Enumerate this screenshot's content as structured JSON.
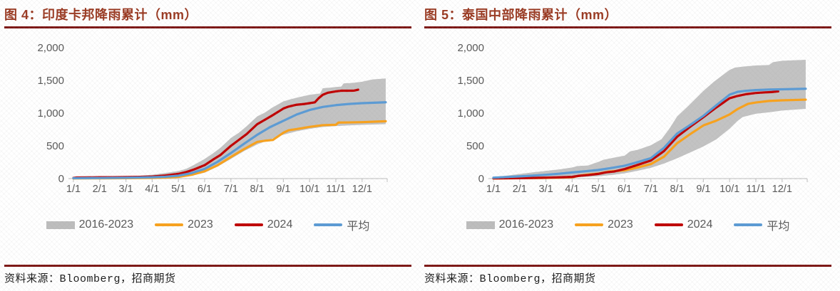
{
  "colors": {
    "title": "#9a3a22",
    "rule": "#7d1715",
    "axis_text": "#595959",
    "axis_line": "#c9c9c9",
    "band": "#c3c3c3",
    "orange_2023": "#f9a21c",
    "red_2024": "#c00000",
    "blue_avg": "#5b9bd5",
    "source_text": "#1a1a1a"
  },
  "panels": [
    {
      "title": "图 4：印度卡邦降雨累计（mm）",
      "source": "资料来源：Bloomberg，招商期货"
    },
    {
      "title": "图 5：泰国中部降雨累计（mm）",
      "source": "资料来源：Bloomberg，招商期货"
    }
  ],
  "chart_data": [
    {
      "type": "line",
      "title": "图 4：印度卡邦降雨累计（mm）",
      "xlabel": "",
      "ylabel": "",
      "x_axis": {
        "tick_labels": [
          "1/1",
          "2/1",
          "3/1",
          "4/1",
          "5/1",
          "6/1",
          "7/1",
          "8/1",
          "9/1",
          "10/1",
          "11/1",
          "12/1"
        ],
        "range_months": [
          1,
          12.9
        ]
      },
      "y_axis": {
        "ticks": [
          0,
          500,
          1000,
          1500,
          2000
        ],
        "tick_labels": [
          "0",
          "500",
          "1,000",
          "1,500",
          "2,000"
        ],
        "range": [
          0,
          2000
        ]
      },
      "grid": false,
      "legend_position": "bottom",
      "legend": [
        "2016-2023",
        "2023",
        "2024",
        "平均"
      ],
      "band": {
        "name": "2016-2023",
        "upper": [
          [
            1,
            12
          ],
          [
            1.5,
            16
          ],
          [
            2,
            20
          ],
          [
            2.5,
            25
          ],
          [
            3,
            32
          ],
          [
            3.5,
            42
          ],
          [
            4,
            58
          ],
          [
            4.5,
            85
          ],
          [
            5,
            115
          ],
          [
            5.3,
            150
          ],
          [
            5.6,
            210
          ],
          [
            6,
            300
          ],
          [
            6.3,
            380
          ],
          [
            6.6,
            470
          ],
          [
            7,
            620
          ],
          [
            7.3,
            700
          ],
          [
            7.6,
            800
          ],
          [
            8,
            950
          ],
          [
            8.3,
            1010
          ],
          [
            8.6,
            1090
          ],
          [
            9,
            1180
          ],
          [
            9.3,
            1215
          ],
          [
            9.6,
            1245
          ],
          [
            10,
            1280
          ],
          [
            10.4,
            1300
          ],
          [
            10.5,
            1380
          ],
          [
            10.8,
            1390
          ],
          [
            11,
            1400
          ],
          [
            11.2,
            1405
          ],
          [
            11.3,
            1455
          ],
          [
            11.6,
            1460
          ],
          [
            12,
            1480
          ],
          [
            12.4,
            1515
          ],
          [
            12.9,
            1530
          ]
        ],
        "lower": [
          [
            1,
            1
          ],
          [
            2,
            3
          ],
          [
            3,
            5
          ],
          [
            4,
            8
          ],
          [
            4.5,
            12
          ],
          [
            5,
            18
          ],
          [
            5.5,
            45
          ],
          [
            6,
            90
          ],
          [
            6.5,
            185
          ],
          [
            7,
            300
          ],
          [
            7.5,
            420
          ],
          [
            8,
            520
          ],
          [
            8.5,
            600
          ],
          [
            9,
            670
          ],
          [
            9.5,
            722
          ],
          [
            10,
            760
          ],
          [
            10.5,
            788
          ],
          [
            11,
            802
          ],
          [
            11.5,
            812
          ],
          [
            12,
            820
          ],
          [
            12.9,
            832
          ]
        ]
      },
      "series": [
        {
          "name": "2023",
          "color_key": "orange_2023",
          "points": [
            [
              1,
              2
            ],
            [
              2,
              4
            ],
            [
              3,
              7
            ],
            [
              4,
              11
            ],
            [
              4.5,
              16
            ],
            [
              5,
              26
            ],
            [
              5.5,
              58
            ],
            [
              6,
              112
            ],
            [
              6.5,
              205
            ],
            [
              7,
              330
            ],
            [
              7.5,
              450
            ],
            [
              8,
              560
            ],
            [
              8.3,
              578
            ],
            [
              8.6,
              590
            ],
            [
              9,
              700
            ],
            [
              9.2,
              738
            ],
            [
              9.5,
              756
            ],
            [
              10,
              790
            ],
            [
              10.5,
              816
            ],
            [
              11,
              822
            ],
            [
              11.1,
              856
            ],
            [
              11.5,
              858
            ],
            [
              12,
              862
            ],
            [
              12.9,
              876
            ]
          ]
        },
        {
          "name": "2024",
          "color_key": "red_2024",
          "points": [
            [
              1,
              10
            ],
            [
              1.1,
              16
            ],
            [
              1.5,
              18
            ],
            [
              2,
              20
            ],
            [
              2.5,
              21
            ],
            [
              3,
              23
            ],
            [
              3.5,
              26
            ],
            [
              4,
              32
            ],
            [
              4.5,
              46
            ],
            [
              5,
              72
            ],
            [
              5.3,
              100
            ],
            [
              5.6,
              140
            ],
            [
              6,
              205
            ],
            [
              6.3,
              285
            ],
            [
              6.6,
              360
            ],
            [
              7,
              500
            ],
            [
              7.3,
              590
            ],
            [
              7.6,
              680
            ],
            [
              8,
              830
            ],
            [
              8.3,
              900
            ],
            [
              8.6,
              970
            ],
            [
              9,
              1070
            ],
            [
              9.2,
              1100
            ],
            [
              9.5,
              1128
            ],
            [
              9.8,
              1140
            ],
            [
              10,
              1152
            ],
            [
              10.2,
              1165
            ],
            [
              10.35,
              1230
            ],
            [
              10.5,
              1280
            ],
            [
              10.7,
              1312
            ],
            [
              11,
              1332
            ],
            [
              11.2,
              1342
            ],
            [
              11.5,
              1342
            ],
            [
              11.7,
              1344
            ],
            [
              11.85,
              1358
            ]
          ]
        },
        {
          "name": "平均",
          "color_key": "blue_avg",
          "points": [
            [
              1,
              6
            ],
            [
              2,
              9
            ],
            [
              3,
              13
            ],
            [
              4,
              20
            ],
            [
              4.5,
              28
            ],
            [
              5,
              44
            ],
            [
              5.5,
              84
            ],
            [
              6,
              148
            ],
            [
              6.5,
              258
            ],
            [
              7,
              390
            ],
            [
              7.5,
              532
            ],
            [
              8,
              668
            ],
            [
              8.5,
              788
            ],
            [
              9,
              882
            ],
            [
              9.5,
              978
            ],
            [
              10,
              1048
            ],
            [
              10.5,
              1094
            ],
            [
              11,
              1122
            ],
            [
              11.5,
              1140
            ],
            [
              12,
              1152
            ],
            [
              12.9,
              1166
            ]
          ]
        }
      ]
    },
    {
      "type": "line",
      "title": "图 5：泰国中部降雨累计（mm）",
      "xlabel": "",
      "ylabel": "",
      "x_axis": {
        "tick_labels": [
          "1/1",
          "2/1",
          "3/1",
          "4/1",
          "5/1",
          "6/1",
          "7/1",
          "8/1",
          "9/1",
          "10/1",
          "11/1",
          "12/1"
        ],
        "range_months": [
          1,
          12.9
        ]
      },
      "y_axis": {
        "ticks": [
          0,
          500,
          1000,
          1500,
          2000
        ],
        "tick_labels": [
          "0",
          "500",
          "1,000",
          "1,500",
          "2,000"
        ],
        "range": [
          0,
          2000
        ]
      },
      "grid": false,
      "legend_position": "bottom",
      "legend": [
        "2016-2023",
        "2023",
        "2024",
        "平均"
      ],
      "band": {
        "name": "2016-2023",
        "upper": [
          [
            1,
            25
          ],
          [
            1.5,
            45
          ],
          [
            2,
            70
          ],
          [
            2.5,
            95
          ],
          [
            3,
            118
          ],
          [
            3.5,
            140
          ],
          [
            4,
            170
          ],
          [
            4.2,
            192
          ],
          [
            4.6,
            200
          ],
          [
            5,
            255
          ],
          [
            5.2,
            288
          ],
          [
            5.6,
            320
          ],
          [
            6,
            350
          ],
          [
            6.2,
            415
          ],
          [
            6.5,
            440
          ],
          [
            7,
            510
          ],
          [
            7.4,
            600
          ],
          [
            7.7,
            760
          ],
          [
            8,
            950
          ],
          [
            8.4,
            1100
          ],
          [
            8.7,
            1220
          ],
          [
            9,
            1340
          ],
          [
            9.4,
            1480
          ],
          [
            9.7,
            1570
          ],
          [
            10,
            1660
          ],
          [
            10.2,
            1695
          ],
          [
            10.5,
            1710
          ],
          [
            11,
            1728
          ],
          [
            11.5,
            1735
          ],
          [
            11.65,
            1778
          ],
          [
            12,
            1800
          ],
          [
            12.5,
            1808
          ],
          [
            12.9,
            1815
          ]
        ],
        "lower": [
          [
            1,
            2
          ],
          [
            2,
            5
          ],
          [
            3,
            10
          ],
          [
            4,
            18
          ],
          [
            4.5,
            26
          ],
          [
            5,
            35
          ],
          [
            5.5,
            55
          ],
          [
            6,
            80
          ],
          [
            6.5,
            120
          ],
          [
            7,
            165
          ],
          [
            7.5,
            230
          ],
          [
            8,
            310
          ],
          [
            8.5,
            400
          ],
          [
            9,
            490
          ],
          [
            9.5,
            600
          ],
          [
            10,
            762
          ],
          [
            10.3,
            880
          ],
          [
            10.5,
            940
          ],
          [
            11,
            990
          ],
          [
            11.5,
            1012
          ],
          [
            12,
            1040
          ],
          [
            12.9,
            1065
          ]
        ]
      },
      "series": [
        {
          "name": "2023",
          "color_key": "orange_2023",
          "points": [
            [
              1,
              3
            ],
            [
              2,
              6
            ],
            [
              3,
              10
            ],
            [
              3.5,
              14
            ],
            [
              4,
              20
            ],
            [
              4.3,
              46
            ],
            [
              4.6,
              62
            ],
            [
              5,
              76
            ],
            [
              5.4,
              108
            ],
            [
              6,
              126
            ],
            [
              6.5,
              170
            ],
            [
              7,
              222
            ],
            [
              7.5,
              335
            ],
            [
              8,
              540
            ],
            [
              8.5,
              680
            ],
            [
              9,
              812
            ],
            [
              9.5,
              886
            ],
            [
              10,
              980
            ],
            [
              10.3,
              1062
            ],
            [
              10.7,
              1142
            ],
            [
              11,
              1162
            ],
            [
              11.5,
              1186
            ],
            [
              12,
              1196
            ],
            [
              12.9,
              1206
            ]
          ]
        },
        {
          "name": "2024",
          "color_key": "red_2024",
          "points": [
            [
              1,
              4
            ],
            [
              2,
              7
            ],
            [
              3,
              14
            ],
            [
              3.6,
              20
            ],
            [
              4,
              26
            ],
            [
              4.25,
              42
            ],
            [
              4.6,
              54
            ],
            [
              5,
              72
            ],
            [
              5.3,
              96
            ],
            [
              5.6,
              108
            ],
            [
              6,
              146
            ],
            [
              6.5,
              210
            ],
            [
              7,
              276
            ],
            [
              7.5,
              420
            ],
            [
              8,
              640
            ],
            [
              8.5,
              792
            ],
            [
              9,
              938
            ],
            [
              9.5,
              1088
            ],
            [
              10,
              1228
            ],
            [
              10.3,
              1262
            ],
            [
              10.6,
              1288
            ],
            [
              11,
              1308
            ],
            [
              11.3,
              1316
            ],
            [
              11.6,
              1322
            ],
            [
              11.85,
              1332
            ]
          ]
        },
        {
          "name": "平均",
          "color_key": "blue_avg",
          "points": [
            [
              1,
              14
            ],
            [
              1.5,
              24
            ],
            [
              2,
              34
            ],
            [
              2.5,
              45
            ],
            [
              3,
              58
            ],
            [
              3.5,
              74
            ],
            [
              4,
              94
            ],
            [
              4.5,
              112
            ],
            [
              5,
              132
            ],
            [
              5.5,
              162
            ],
            [
              6,
              196
            ],
            [
              6.5,
              252
            ],
            [
              7,
              312
            ],
            [
              7.5,
              470
            ],
            [
              8,
              688
            ],
            [
              8.5,
              820
            ],
            [
              9,
              958
            ],
            [
              9.5,
              1122
            ],
            [
              10,
              1282
            ],
            [
              10.3,
              1325
            ],
            [
              10.6,
              1340
            ],
            [
              11,
              1352
            ],
            [
              11.5,
              1360
            ],
            [
              12,
              1364
            ],
            [
              12.9,
              1372
            ]
          ]
        }
      ]
    }
  ]
}
